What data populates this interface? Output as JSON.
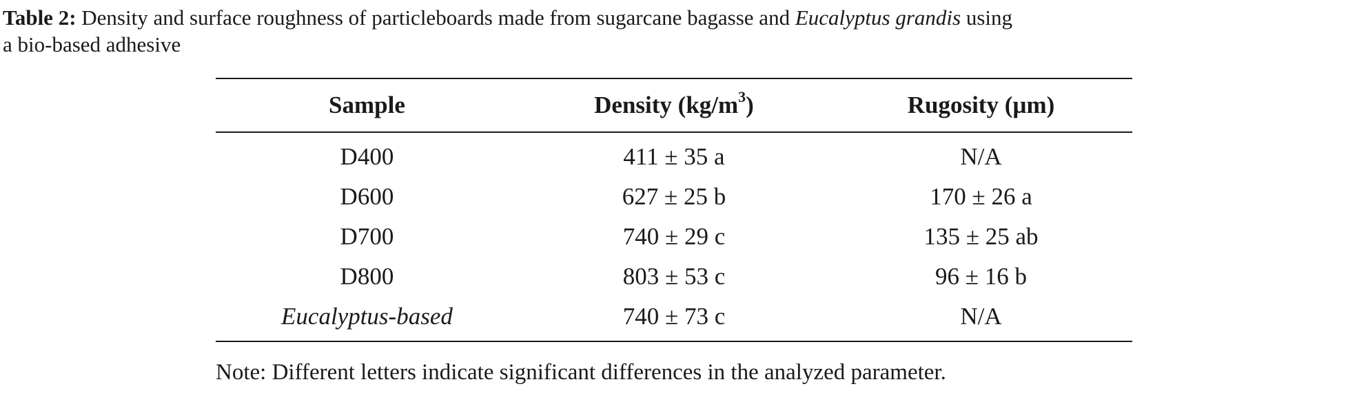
{
  "caption": {
    "label": "Table 2:",
    "text_part1": " Density and surface roughness of particleboards made from sugarcane bagasse and ",
    "text_italic": "Eucalyptus grandis",
    "text_part2": " using",
    "text_line2": "a bio-based adhesive"
  },
  "table": {
    "headers": {
      "sample": "Sample",
      "density_prefix": "Density (kg/m",
      "density_sup": "3",
      "density_suffix": ")",
      "rugosity": "Rugosity (µm)"
    },
    "rows": [
      {
        "sample": "D400",
        "density": "411 ± 35 a",
        "rugosity": "N/A"
      },
      {
        "sample": "D600",
        "density": "627 ± 25 b",
        "rugosity": "170 ± 26 a"
      },
      {
        "sample": "D700",
        "density": "740 ± 29 c",
        "rugosity": "135 ± 25 ab"
      },
      {
        "sample": "D800",
        "density": "803 ± 53 c",
        "rugosity": "96 ± 16 b"
      },
      {
        "sample": "Eucalyptus-based",
        "density": "740 ± 73 c",
        "rugosity": "N/A"
      }
    ]
  },
  "note": "Note: Different letters indicate significant differences in the analyzed parameter."
}
